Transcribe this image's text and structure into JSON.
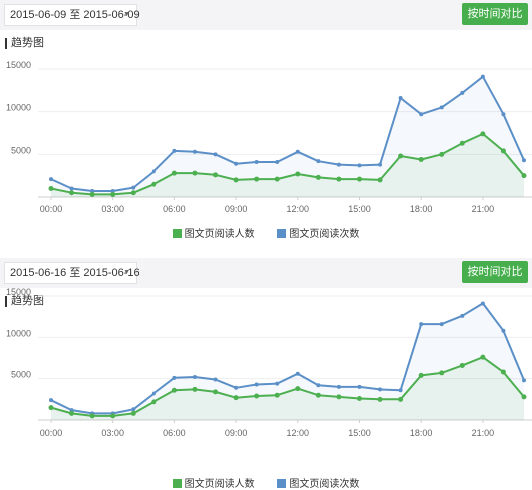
{
  "panels": [
    {
      "date_range": "2015-06-09 至 2015-06-09",
      "compare_button": "按时间对比",
      "section_title": "趋势图"
    },
    {
      "date_range": "2015-06-16 至 2015-06-16",
      "compare_button": "按时间对比",
      "section_title": "趋势图"
    }
  ],
  "colors": {
    "readers": "#4caf50",
    "reads": "#5b8fc7",
    "button": "#46ae4d"
  },
  "chart_data": [
    {
      "type": "line",
      "x": [
        0,
        1,
        2,
        3,
        4,
        5,
        6,
        7,
        8,
        9,
        10,
        11,
        12,
        13,
        14,
        15,
        16,
        17,
        18,
        19,
        20,
        21,
        22,
        23
      ],
      "x_tick_labels": [
        "00:00",
        "03:00",
        "06:00",
        "09:00",
        "12:00",
        "15:00",
        "18:00",
        "21:00"
      ],
      "x_tick_positions": [
        0,
        3,
        6,
        9,
        12,
        15,
        18,
        21
      ],
      "ylim": [
        0,
        15000
      ],
      "y_ticks": [
        5000,
        10000,
        15000
      ],
      "legend": "bottom",
      "series": [
        {
          "name": "图文页阅读人数",
          "color": "#4caf50",
          "values": [
            1000,
            500,
            300,
            300,
            500,
            1500,
            2800,
            2800,
            2600,
            2000,
            2100,
            2100,
            2700,
            2300,
            2100,
            2100,
            2000,
            4800,
            4400,
            5000,
            6300,
            7400,
            5400,
            2500
          ]
        },
        {
          "name": "图文页阅读次数",
          "color": "#5b8fc7",
          "values": [
            2100,
            1000,
            700,
            700,
            1100,
            3000,
            5400,
            5300,
            5000,
            3900,
            4100,
            4100,
            5300,
            4200,
            3800,
            3700,
            3800,
            11600,
            9700,
            10500,
            12200,
            14100,
            9700,
            4300
          ]
        }
      ]
    },
    {
      "type": "line",
      "x": [
        0,
        1,
        2,
        3,
        4,
        5,
        6,
        7,
        8,
        9,
        10,
        11,
        12,
        13,
        14,
        15,
        16,
        17,
        18,
        19,
        20,
        21,
        22,
        23
      ],
      "x_tick_labels": [
        "00:00",
        "03:00",
        "06:00",
        "09:00",
        "12:00",
        "15:00",
        "18:00",
        "21:00"
      ],
      "x_tick_positions": [
        0,
        3,
        6,
        9,
        12,
        15,
        18,
        21
      ],
      "ylim": [
        0,
        15000
      ],
      "y_ticks": [
        5000,
        10000,
        15000
      ],
      "legend": "bottom",
      "series": [
        {
          "name": "图文页阅读人数",
          "color": "#4caf50",
          "values": [
            1500,
            800,
            500,
            500,
            800,
            2200,
            3600,
            3700,
            3400,
            2700,
            2900,
            3000,
            3800,
            3000,
            2800,
            2600,
            2500,
            2500,
            5400,
            5700,
            6600,
            7600,
            5800,
            2800
          ]
        },
        {
          "name": "图文页阅读次数",
          "color": "#5b8fc7",
          "values": [
            2400,
            1200,
            800,
            800,
            1300,
            3200,
            5100,
            5200,
            4900,
            3900,
            4300,
            4400,
            5600,
            4200,
            4000,
            4000,
            3700,
            3600,
            11600,
            11600,
            12600,
            14100,
            10800,
            4800
          ]
        }
      ]
    }
  ]
}
